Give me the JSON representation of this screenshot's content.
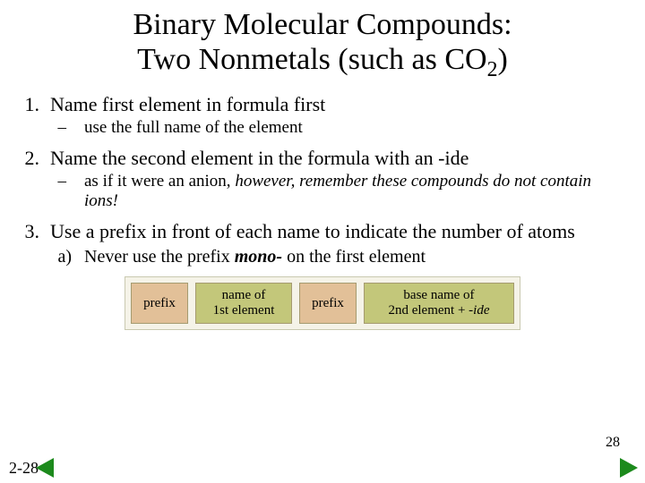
{
  "title_line1": "Binary Molecular Compounds:",
  "title_line2_pre": "Two Nonmetals (such as CO",
  "title_line2_sub": "2",
  "title_line2_post": ")",
  "items": {
    "n1": "1.",
    "t1": "Name first element in formula first",
    "d1": "–",
    "s1": "use the full name of the element",
    "n2": "2.",
    "t2": "Name the second element in the formula with an -ide",
    "d2": "–",
    "s2a": "as if it were an anion, ",
    "s2b": "however, remember these compounds do not contain ions!",
    "n3": "3.",
    "t3": "Use a prefix in front of each name to indicate the number of atoms",
    "a3lbl": "a)",
    "a3pre": "Never use the prefix ",
    "a3mono": "mono-",
    "a3post": " on the first element"
  },
  "diagram": {
    "prefix": "prefix",
    "name1_l1": "name of",
    "name1_l2": "1st element",
    "name2_l1": "base name of",
    "name2_l2a": "2nd element + -",
    "name2_l2b": "ide"
  },
  "footer": {
    "slide_no": "28",
    "corner": "2-28"
  },
  "colors": {
    "box_prefix": "#e2c098",
    "box_name": "#c3c77a",
    "diagram_bg": "#f5f3e8",
    "arrow": "#1c8a1c"
  }
}
